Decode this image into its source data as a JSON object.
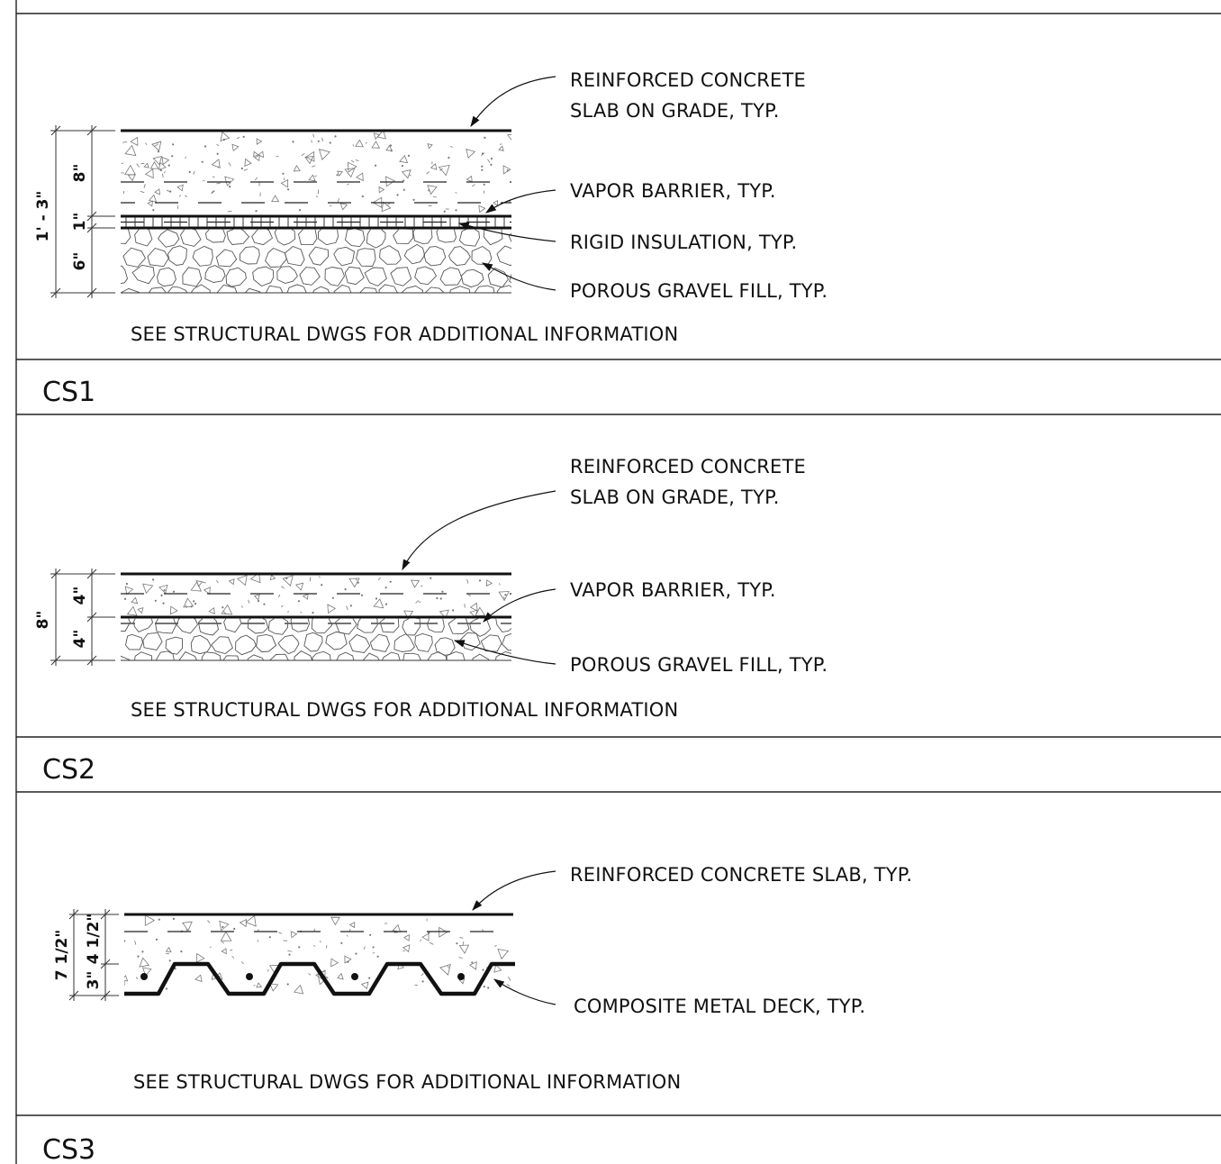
{
  "details": [
    {
      "tag": "CS1",
      "dimensions": {
        "overall": "1' - 3\"",
        "slab": "8\"",
        "insulation": "1\"",
        "fill": "6\""
      },
      "callouts": {
        "slab": [
          "REINFORCED CONCRETE",
          "SLAB ON GRADE, TYP."
        ],
        "vapor": "VAPOR BARRIER, TYP.",
        "insulation": "RIGID INSULATION, TYP.",
        "gravel": "POROUS GRAVEL FILL, TYP."
      },
      "note": "SEE STRUCTURAL DWGS FOR ADDITIONAL INFORMATION"
    },
    {
      "tag": "CS2",
      "dimensions": {
        "overall": "8\"",
        "slab": "4\"",
        "fill": "4\""
      },
      "callouts": {
        "slab": [
          "REINFORCED CONCRETE",
          "SLAB ON GRADE, TYP."
        ],
        "vapor": "VAPOR BARRIER, TYP.",
        "gravel": "POROUS GRAVEL FILL, TYP."
      },
      "note": "SEE STRUCTURAL DWGS FOR ADDITIONAL INFORMATION"
    },
    {
      "tag": "CS3",
      "dimensions": {
        "overall": "7 1/2\"",
        "topping": "4 1/2\"",
        "deck": "3\""
      },
      "callouts": {
        "slab": "REINFORCED CONCRETE SLAB, TYP.",
        "deck": "COMPOSITE METAL DECK, TYP."
      },
      "note": "SEE STRUCTURAL DWGS FOR ADDITIONAL INFORMATION"
    }
  ]
}
